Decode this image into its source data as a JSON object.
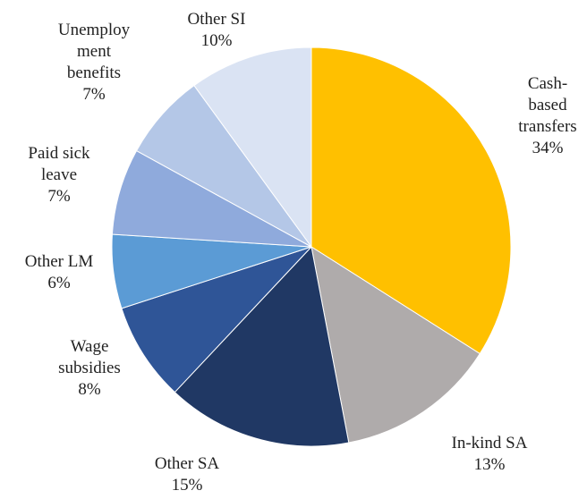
{
  "chart_data": {
    "type": "pie",
    "categories": [
      "Cash-based transfers",
      "In-kind SA",
      "Other SA",
      "Wage subsidies",
      "Other LM",
      "Paid sick leave",
      "Unemployment benefits",
      "Other SI"
    ],
    "values": [
      34,
      13,
      15,
      8,
      6,
      7,
      7,
      10
    ],
    "value_labels": [
      "34%",
      "13%",
      "15%",
      "8%",
      "6%",
      "7%",
      "7%",
      "10%"
    ],
    "colors": [
      "#FFC000",
      "#AFABAB",
      "#203864",
      "#2F5597",
      "#5B9BD5",
      "#8FAADC",
      "#B4C7E7",
      "#DAE3F3"
    ]
  }
}
